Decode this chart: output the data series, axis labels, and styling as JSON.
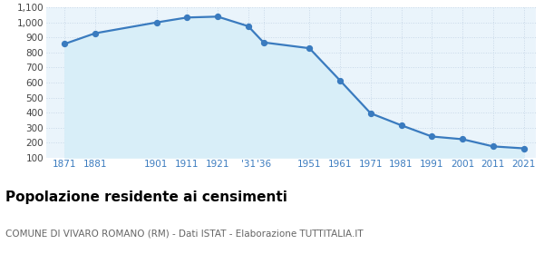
{
  "years": [
    1871,
    1881,
    1901,
    1911,
    1921,
    1931,
    1936,
    1951,
    1961,
    1971,
    1981,
    1991,
    2001,
    2011,
    2021
  ],
  "population": [
    858,
    929,
    1001,
    1034,
    1040,
    976,
    868,
    829,
    614,
    395,
    315,
    240,
    222,
    174,
    161
  ],
  "x_tick_positions": [
    1871,
    1881,
    1901,
    1911,
    1921,
    1931,
    1936,
    1951,
    1961,
    1971,
    1981,
    1991,
    2001,
    2011,
    2021
  ],
  "x_tick_labels": [
    "1871",
    "1881",
    "1901",
    "1911",
    "1921",
    "'31",
    "'36",
    "1951",
    "1961",
    "1971",
    "1981",
    "1991",
    "2001",
    "2011",
    "2021"
  ],
  "y_ticks": [
    100,
    200,
    300,
    400,
    500,
    600,
    700,
    800,
    900,
    1000,
    1100
  ],
  "ylim": [
    100,
    1100
  ],
  "xlim_left": 1865,
  "xlim_right": 2025,
  "line_color": "#3a7bbf",
  "fill_color": "#d8eef8",
  "marker_color": "#3a7bbf",
  "grid_color": "#c8d8e8",
  "background_color": "#eaf4fb",
  "title": "Popolazione residente ai censimenti",
  "subtitle": "COMUNE DI VIVARO ROMANO (RM) - Dati ISTAT - Elaborazione TUTTITALIA.IT",
  "title_fontsize": 11,
  "subtitle_fontsize": 7.5,
  "tick_fontsize": 7.5,
  "line_width": 1.6,
  "marker_size": 18
}
